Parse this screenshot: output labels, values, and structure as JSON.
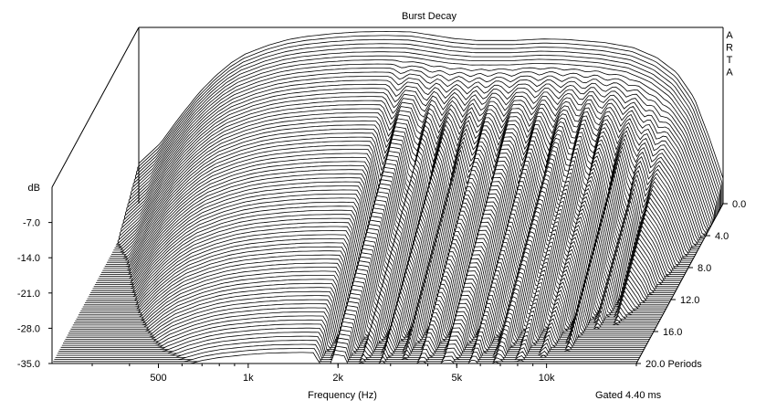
{
  "chart_data": {
    "type": "waterfall",
    "title": "Burst Decay",
    "watermark": "ARTA",
    "xlabel": "Frequency (Hz)",
    "ylabel": "dB",
    "zlabel": "Periods",
    "gate_label": "Gated 4.40 ms",
    "x_scale": "log",
    "xlim": [
      220,
      20000
    ],
    "ylim": [
      -35,
      0
    ],
    "zlim": [
      0,
      20
    ],
    "x_ticks": [
      {
        "value": 500,
        "label": "500"
      },
      {
        "value": 1000,
        "label": "1k"
      },
      {
        "value": 2000,
        "label": "2k"
      },
      {
        "value": 5000,
        "label": "5k"
      },
      {
        "value": 10000,
        "label": "10k"
      }
    ],
    "y_ticks": [
      {
        "value": -7,
        "label": "-7.0"
      },
      {
        "value": -14,
        "label": "-14.0"
      },
      {
        "value": -21,
        "label": "-21.0"
      },
      {
        "value": -28,
        "label": "-28.0"
      },
      {
        "value": -35,
        "label": "-35.0"
      }
    ],
    "z_ticks": [
      {
        "value": 0,
        "label": "0.0"
      },
      {
        "value": 4,
        "label": "4.0"
      },
      {
        "value": 8,
        "label": "8.0"
      },
      {
        "value": 12,
        "label": "12.0"
      },
      {
        "value": 16,
        "label": "16.0"
      },
      {
        "value": 20,
        "label": "20.0 Periods"
      }
    ],
    "initial_response": {
      "freq_hz": [
        220,
        260,
        300,
        350,
        400,
        450,
        500,
        600,
        700,
        800,
        1000,
        1200,
        1500,
        1800,
        2000,
        2500,
        3000,
        4000,
        5000,
        6000,
        8000,
        10000,
        12000,
        14000,
        16000,
        18000,
        20000
      ],
      "db": [
        -27,
        -23,
        -18,
        -13,
        -9.5,
        -7,
        -5.3,
        -3.5,
        -2.4,
        -1.8,
        -1.2,
        -0.9,
        -0.8,
        -0.9,
        -1.3,
        -2.2,
        -2.6,
        -2.6,
        -2.3,
        -2.4,
        -3,
        -4,
        -6,
        -9,
        -14,
        -22,
        -30
      ]
    },
    "decay": {
      "periods": [
        0,
        4,
        8,
        12,
        16,
        20
      ],
      "db_drop_per_period": 1.6,
      "floor_db": -35,
      "notch_freqs_hz": [
        1800,
        2250,
        2600,
        3050,
        3500,
        4200,
        5200,
        6200,
        7400,
        8700,
        10300,
        12000,
        13500
      ]
    }
  }
}
